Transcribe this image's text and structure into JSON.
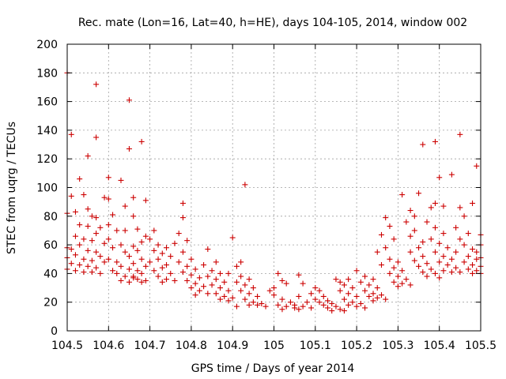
{
  "chart_data": {
    "type": "scatter",
    "title": "Rec. mate (Lon=16, Lat=40, h=HE), days 104-105, 2014, window 002",
    "xlabel": "GPS time / Days of year 2014",
    "ylabel": "STEC from uqrg / TECUs",
    "xlim": [
      104.5,
      105.5
    ],
    "ylim": [
      0,
      200
    ],
    "x_ticks": [
      104.5,
      104.6,
      104.7,
      104.8,
      104.9,
      105,
      105.1,
      105.2,
      105.3,
      105.4,
      105.5
    ],
    "x_tick_labels": [
      "104.5",
      "104.6",
      "104.7",
      "104.8",
      "104.9",
      "105",
      "105.1",
      "105.2",
      "105.3",
      "105.4",
      "105.5"
    ],
    "y_ticks": [
      0,
      20,
      40,
      60,
      80,
      100,
      120,
      140,
      160,
      180,
      200
    ],
    "y_tick_labels": [
      "0",
      "20",
      "40",
      "60",
      "80",
      "100",
      "120",
      "140",
      "160",
      "180",
      "200"
    ],
    "grid": true,
    "marker_color": "#cc0000",
    "marker": "plus",
    "series": [
      {
        "points": [
          [
            104.5,
            180
          ],
          [
            104.51,
            137
          ],
          [
            104.57,
            172
          ],
          [
            104.57,
            135
          ],
          [
            104.55,
            122
          ],
          [
            104.53,
            106
          ],
          [
            104.51,
            94
          ],
          [
            104.54,
            95
          ],
          [
            104.55,
            85
          ],
          [
            104.52,
            83
          ],
          [
            104.5,
            82
          ],
          [
            104.56,
            80
          ],
          [
            104.57,
            79
          ],
          [
            104.53,
            74
          ],
          [
            104.55,
            73
          ],
          [
            104.58,
            72
          ],
          [
            104.57,
            68
          ],
          [
            104.52,
            66
          ],
          [
            104.54,
            64
          ],
          [
            104.56,
            63
          ],
          [
            104.59,
            61
          ],
          [
            104.53,
            60
          ],
          [
            104.5,
            58
          ],
          [
            104.51,
            57
          ],
          [
            104.55,
            56
          ],
          [
            104.57,
            55
          ],
          [
            104.52,
            53
          ],
          [
            104.58,
            52
          ],
          [
            104.5,
            51
          ],
          [
            104.54,
            50
          ],
          [
            104.56,
            49
          ],
          [
            104.59,
            48
          ],
          [
            104.51,
            47
          ],
          [
            104.53,
            46
          ],
          [
            104.55,
            45
          ],
          [
            104.57,
            44
          ],
          [
            104.5,
            43
          ],
          [
            104.52,
            42
          ],
          [
            104.54,
            41
          ],
          [
            104.56,
            41
          ],
          [
            104.58,
            40
          ],
          [
            104.6,
            107
          ],
          [
            104.6,
            92
          ],
          [
            104.59,
            93
          ],
          [
            104.61,
            81
          ],
          [
            104.6,
            74
          ],
          [
            104.62,
            70
          ],
          [
            104.6,
            64
          ],
          [
            104.63,
            60
          ],
          [
            104.61,
            58
          ],
          [
            104.64,
            55
          ],
          [
            104.6,
            50
          ],
          [
            104.62,
            48
          ],
          [
            104.63,
            45
          ],
          [
            104.65,
            43
          ],
          [
            104.61,
            42
          ],
          [
            104.62,
            40
          ],
          [
            104.64,
            38
          ],
          [
            104.66,
            37
          ],
          [
            104.63,
            35
          ],
          [
            104.65,
            34
          ],
          [
            104.65,
            161
          ],
          [
            104.65,
            127
          ],
          [
            104.63,
            105
          ],
          [
            104.66,
            93
          ],
          [
            104.68,
            132
          ],
          [
            104.69,
            91
          ],
          [
            104.64,
            87
          ],
          [
            104.66,
            80
          ],
          [
            104.67,
            71
          ],
          [
            104.64,
            70
          ],
          [
            104.69,
            66
          ],
          [
            104.68,
            62
          ],
          [
            104.66,
            59
          ],
          [
            104.67,
            56
          ],
          [
            104.65,
            52
          ],
          [
            104.68,
            50
          ],
          [
            104.66,
            47
          ],
          [
            104.69,
            45
          ],
          [
            104.67,
            42
          ],
          [
            104.68,
            40
          ],
          [
            104.66,
            38
          ],
          [
            104.67,
            36
          ],
          [
            104.69,
            35
          ],
          [
            104.68,
            34
          ],
          [
            104.71,
            70
          ],
          [
            104.7,
            64
          ],
          [
            104.72,
            60
          ],
          [
            104.74,
            58
          ],
          [
            104.71,
            56
          ],
          [
            104.73,
            54
          ],
          [
            104.75,
            52
          ],
          [
            104.72,
            50
          ],
          [
            104.7,
            48
          ],
          [
            104.74,
            46
          ],
          [
            104.73,
            44
          ],
          [
            104.71,
            42
          ],
          [
            104.75,
            40
          ],
          [
            104.72,
            38
          ],
          [
            104.74,
            36
          ],
          [
            104.76,
            35
          ],
          [
            104.73,
            34
          ],
          [
            104.78,
            89
          ],
          [
            104.78,
            79
          ],
          [
            104.79,
            63
          ],
          [
            104.77,
            68
          ],
          [
            104.76,
            61
          ],
          [
            104.78,
            55
          ],
          [
            104.8,
            50
          ],
          [
            104.77,
            48
          ],
          [
            104.79,
            45
          ],
          [
            104.81,
            43
          ],
          [
            104.78,
            41
          ],
          [
            104.8,
            39
          ],
          [
            104.82,
            37
          ],
          [
            104.79,
            35
          ],
          [
            104.81,
            33
          ],
          [
            104.83,
            31
          ],
          [
            104.8,
            30
          ],
          [
            104.82,
            28
          ],
          [
            104.84,
            26
          ],
          [
            104.81,
            25
          ],
          [
            104.84,
            57
          ],
          [
            104.83,
            46
          ],
          [
            104.86,
            48
          ],
          [
            104.85,
            42
          ],
          [
            104.87,
            40
          ],
          [
            104.84,
            38
          ],
          [
            104.86,
            36
          ],
          [
            104.88,
            34
          ],
          [
            104.85,
            32
          ],
          [
            104.87,
            30
          ],
          [
            104.89,
            28
          ],
          [
            104.86,
            26
          ],
          [
            104.88,
            24
          ],
          [
            104.9,
            23
          ],
          [
            104.87,
            22
          ],
          [
            104.89,
            21
          ],
          [
            104.9,
            65
          ],
          [
            104.93,
            102
          ],
          [
            104.92,
            48
          ],
          [
            104.91,
            45
          ],
          [
            104.89,
            40
          ],
          [
            104.92,
            38
          ],
          [
            104.94,
            36
          ],
          [
            104.91,
            34
          ],
          [
            104.93,
            32
          ],
          [
            104.95,
            30
          ],
          [
            104.92,
            28
          ],
          [
            104.94,
            26
          ],
          [
            104.96,
            24
          ],
          [
            104.93,
            22
          ],
          [
            104.95,
            20
          ],
          [
            104.97,
            19
          ],
          [
            104.94,
            18
          ],
          [
            104.96,
            18
          ],
          [
            104.98,
            17
          ],
          [
            104.91,
            17
          ],
          [
            105.0,
            30
          ],
          [
            104.99,
            28
          ],
          [
            105.01,
            40
          ],
          [
            105.02,
            35
          ],
          [
            105.03,
            33
          ],
          [
            105.0,
            25
          ],
          [
            105.02,
            22
          ],
          [
            105.04,
            20
          ],
          [
            105.01,
            18
          ],
          [
            105.03,
            17
          ],
          [
            105.05,
            16
          ],
          [
            105.02,
            15
          ],
          [
            105.06,
            39
          ],
          [
            105.07,
            33
          ],
          [
            105.06,
            24
          ],
          [
            105.08,
            20
          ],
          [
            105.05,
            18
          ],
          [
            105.07,
            17
          ],
          [
            105.09,
            16
          ],
          [
            105.06,
            15
          ],
          [
            105.1,
            30
          ],
          [
            105.11,
            28
          ],
          [
            105.09,
            26
          ],
          [
            105.12,
            24
          ],
          [
            105.1,
            22
          ],
          [
            105.13,
            21
          ],
          [
            105.11,
            20
          ],
          [
            105.14,
            19
          ],
          [
            105.12,
            18
          ],
          [
            105.15,
            17
          ],
          [
            105.13,
            16
          ],
          [
            105.16,
            15
          ],
          [
            105.14,
            14
          ],
          [
            105.17,
            14
          ],
          [
            105.15,
            36
          ],
          [
            105.16,
            34
          ],
          [
            105.18,
            36
          ],
          [
            105.17,
            32
          ],
          [
            105.19,
            30
          ],
          [
            105.16,
            28
          ],
          [
            105.18,
            26
          ],
          [
            105.2,
            24
          ],
          [
            105.17,
            22
          ],
          [
            105.19,
            20
          ],
          [
            105.21,
            19
          ],
          [
            105.18,
            18
          ],
          [
            105.2,
            17
          ],
          [
            105.22,
            16
          ],
          [
            105.2,
            42
          ],
          [
            105.22,
            38
          ],
          [
            105.24,
            36
          ],
          [
            105.21,
            34
          ],
          [
            105.23,
            32
          ],
          [
            105.25,
            30
          ],
          [
            105.22,
            28
          ],
          [
            105.24,
            26
          ],
          [
            105.26,
            25
          ],
          [
            105.23,
            24
          ],
          [
            105.25,
            23
          ],
          [
            105.27,
            22
          ],
          [
            105.24,
            21
          ],
          [
            105.27,
            79
          ],
          [
            105.28,
            73
          ],
          [
            105.26,
            67
          ],
          [
            105.29,
            64
          ],
          [
            105.27,
            58
          ],
          [
            105.25,
            55
          ],
          [
            105.28,
            50
          ],
          [
            105.3,
            48
          ],
          [
            105.26,
            46
          ],
          [
            105.29,
            44
          ],
          [
            105.31,
            42
          ],
          [
            105.28,
            40
          ],
          [
            105.3,
            38
          ],
          [
            105.32,
            36
          ],
          [
            105.29,
            34
          ],
          [
            105.31,
            33
          ],
          [
            105.33,
            32
          ],
          [
            105.3,
            31
          ],
          [
            105.31,
            95
          ],
          [
            105.33,
            84
          ],
          [
            105.34,
            80
          ],
          [
            105.32,
            76
          ],
          [
            105.35,
            96
          ],
          [
            105.34,
            70
          ],
          [
            105.33,
            66
          ],
          [
            105.36,
            62
          ],
          [
            105.35,
            58
          ],
          [
            105.33,
            55
          ],
          [
            105.36,
            52
          ],
          [
            105.34,
            49
          ],
          [
            105.37,
            47
          ],
          [
            105.35,
            45
          ],
          [
            105.38,
            43
          ],
          [
            105.36,
            41
          ],
          [
            105.39,
            40
          ],
          [
            105.37,
            38
          ],
          [
            105.4,
            37
          ],
          [
            105.36,
            130
          ],
          [
            105.39,
            132
          ],
          [
            105.39,
            89
          ],
          [
            105.38,
            86
          ],
          [
            105.4,
            107
          ],
          [
            105.41,
            87
          ],
          [
            105.37,
            76
          ],
          [
            105.39,
            72
          ],
          [
            105.41,
            68
          ],
          [
            105.38,
            64
          ],
          [
            105.4,
            61
          ],
          [
            105.42,
            58
          ],
          [
            105.39,
            55
          ],
          [
            105.41,
            52
          ],
          [
            105.43,
            50
          ],
          [
            105.4,
            48
          ],
          [
            105.42,
            46
          ],
          [
            105.44,
            44
          ],
          [
            105.41,
            42
          ],
          [
            105.43,
            41
          ],
          [
            105.45,
            137
          ],
          [
            105.43,
            109
          ],
          [
            105.45,
            86
          ],
          [
            105.46,
            80
          ],
          [
            105.44,
            72
          ],
          [
            105.47,
            68
          ],
          [
            105.45,
            64
          ],
          [
            105.46,
            60
          ],
          [
            105.48,
            57
          ],
          [
            105.44,
            55
          ],
          [
            105.47,
            52
          ],
          [
            105.49,
            50
          ],
          [
            105.46,
            48
          ],
          [
            105.48,
            46
          ],
          [
            105.5,
            45
          ],
          [
            105.47,
            43
          ],
          [
            105.49,
            42
          ],
          [
            105.45,
            41
          ],
          [
            105.48,
            40
          ],
          [
            105.5,
            40
          ],
          [
            105.49,
            115
          ],
          [
            105.48,
            89
          ],
          [
            105.5,
            67
          ],
          [
            105.5,
            60
          ],
          [
            105.49,
            55
          ],
          [
            105.5,
            51
          ]
        ]
      }
    ]
  }
}
